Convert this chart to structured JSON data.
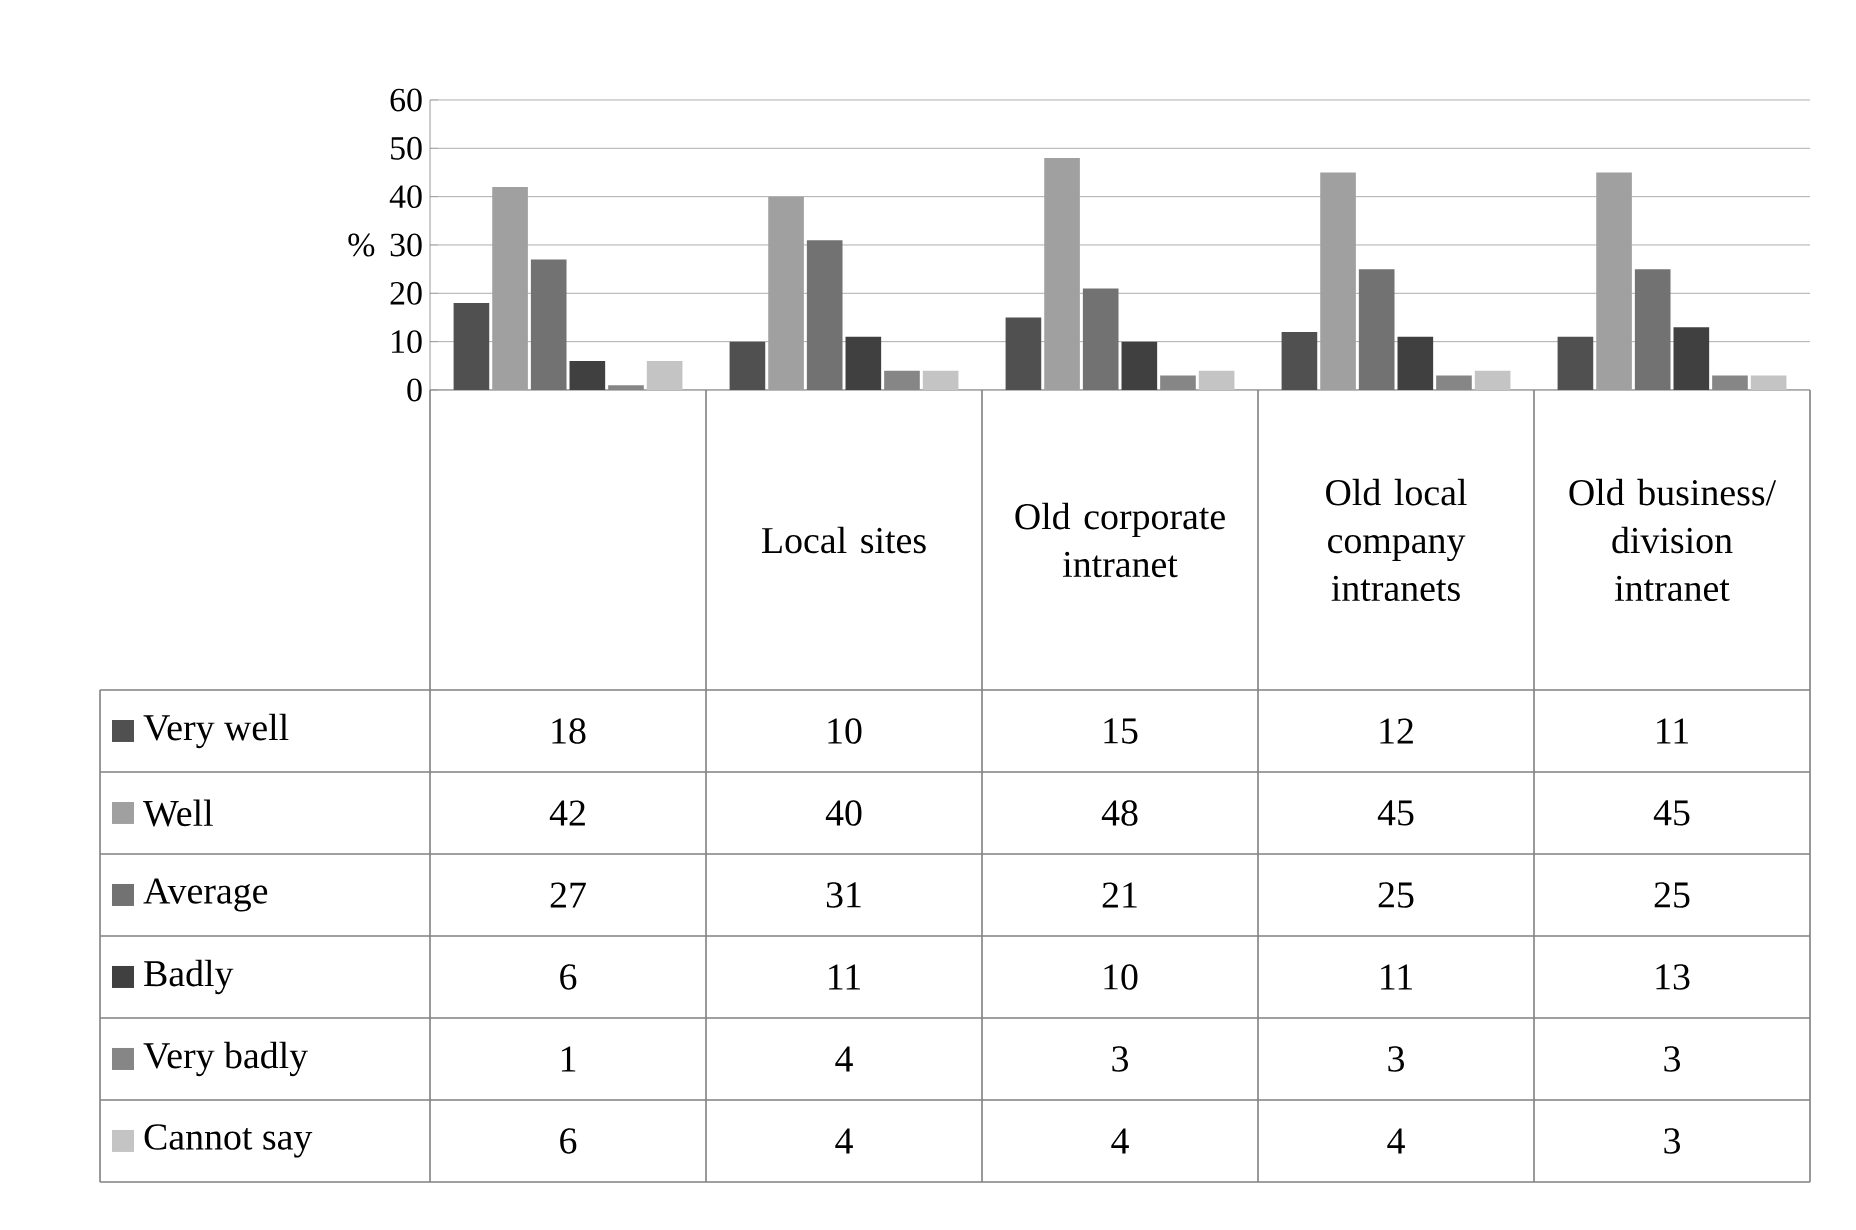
{
  "chart_data": {
    "type": "bar",
    "ylabel": "%",
    "categories": [
      null,
      "Local sites",
      "Old corporate intranet",
      "Old local company intranets",
      "Old business/ division intranet"
    ],
    "series": [
      {
        "name": "Very well",
        "color": "#505050",
        "values": [
          18,
          10,
          15,
          12,
          11
        ]
      },
      {
        "name": "Well",
        "color": "#a0a0a0",
        "values": [
          42,
          40,
          48,
          45,
          45
        ]
      },
      {
        "name": "Average",
        "color": "#727272",
        "values": [
          27,
          31,
          21,
          25,
          25
        ]
      },
      {
        "name": "Badly",
        "color": "#404040",
        "values": [
          6,
          11,
          10,
          11,
          13
        ]
      },
      {
        "name": "Very badly",
        "color": "#868686",
        "values": [
          1,
          4,
          3,
          3,
          3
        ]
      },
      {
        "name": "Cannot say",
        "color": "#c4c4c4",
        "values": [
          6,
          4,
          4,
          4,
          3
        ]
      }
    ],
    "ylim": [
      0,
      60
    ],
    "yticks": [
      0,
      10,
      20,
      30,
      40,
      50,
      60
    ],
    "grid": "y",
    "legend": "bottom",
    "data_labels": true
  }
}
